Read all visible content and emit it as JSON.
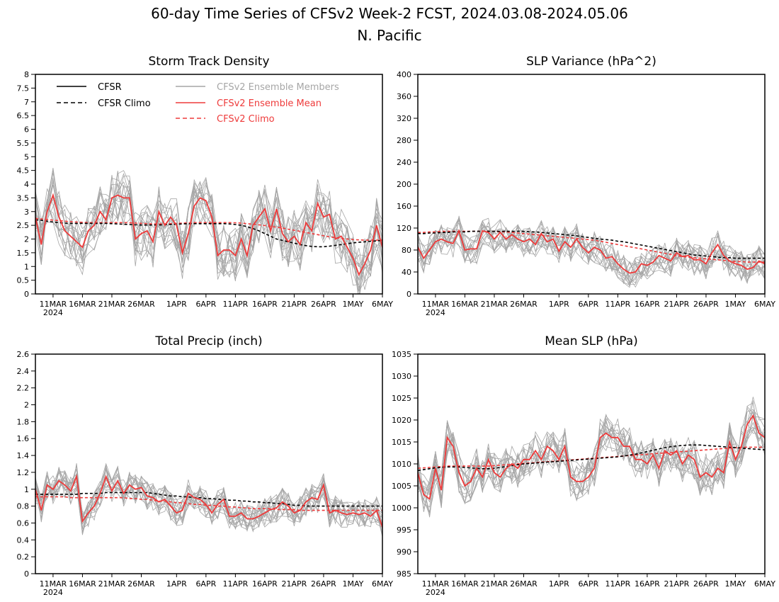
{
  "title": "60-day Time Series of CFSv2 Week-2 FCST, 2024.03.08-2024.05.06",
  "subtitle": "N. Pacific",
  "colors": {
    "cfsr": "#000000",
    "ensemble_members": "#a6a6a6",
    "ensemble_mean": "#ee3b3b",
    "cfsv2_climo": "#ee3b3b"
  },
  "legend": [
    {
      "label": "CFSR",
      "style": "solid",
      "color": "#000000"
    },
    {
      "label": "CFSR Climo",
      "style": "dashed",
      "color": "#000000"
    },
    {
      "label": "CFSv2 Ensemble Members",
      "style": "solid",
      "color": "#a6a6a6"
    },
    {
      "label": "CFSv2 Ensemble Mean",
      "style": "solid",
      "color": "#ee3b3b"
    },
    {
      "label": "CFSv2 Climo",
      "style": "dashed",
      "color": "#ee3b3b"
    }
  ],
  "x_ticks": [
    "11MAR",
    "16MAR",
    "21MAR",
    "26MAR",
    "1APR",
    "6APR",
    "11APR",
    "16APR",
    "21APR",
    "26APR",
    "1MAY",
    "6MAY"
  ],
  "x_year_label": "2024",
  "chart_data": [
    {
      "type": "line",
      "title": "Storm Track Density",
      "ylim": [
        0,
        8
      ],
      "yticks": [
        "0",
        "0.5",
        "1",
        "1.5",
        "2",
        "2.5",
        "3",
        "3.5",
        "4",
        "4.5",
        "5",
        "5.5",
        "6",
        "6.5",
        "7",
        "7.5",
        "8"
      ],
      "x_range_days": [
        0,
        59
      ],
      "x_tick_days": [
        3,
        8,
        13,
        18,
        24,
        29,
        34,
        39,
        44,
        49,
        54,
        59
      ],
      "series": [
        {
          "name": "CFSv2 Ensemble Mean",
          "values": [
            2.8,
            1.8,
            3.0,
            3.6,
            2.8,
            2.3,
            2.1,
            1.9,
            1.7,
            2.3,
            2.5,
            3.0,
            2.7,
            3.5,
            3.6,
            3.5,
            3.5,
            2.0,
            2.2,
            2.3,
            1.9,
            3.0,
            2.5,
            2.8,
            2.5,
            1.5,
            2.2,
            3.2,
            3.5,
            3.4,
            2.8,
            1.4,
            1.6,
            1.6,
            1.4,
            2.0,
            1.4,
            2.5,
            2.8,
            3.1,
            2.3,
            3.1,
            2.2,
            1.9,
            2.1,
            1.8,
            2.6,
            2.3,
            3.3,
            2.8,
            2.9,
            2.0,
            2.1,
            1.7,
            1.3,
            0.7,
            1.1,
            1.6,
            2.5,
            1.7
          ]
        },
        {
          "name": "CFSR Climo",
          "values": [
            2.7,
            2.68,
            2.65,
            2.62,
            2.6,
            2.58,
            2.57,
            2.57,
            2.57,
            2.57,
            2.57,
            2.57,
            2.57,
            2.56,
            2.55,
            2.54,
            2.53,
            2.52,
            2.51,
            2.51,
            2.51,
            2.51,
            2.52,
            2.53,
            2.54,
            2.55,
            2.56,
            2.56,
            2.56,
            2.56,
            2.56,
            2.56,
            2.56,
            2.55,
            2.53,
            2.5,
            2.45,
            2.38,
            2.3,
            2.2,
            2.1,
            2.0,
            1.95,
            1.9,
            1.85,
            1.8,
            1.76,
            1.73,
            1.72,
            1.72,
            1.74,
            1.77,
            1.8,
            1.83,
            1.86,
            1.88,
            1.9,
            1.92,
            1.93,
            1.95
          ]
        },
        {
          "name": "CFSv2 Climo",
          "values": [
            2.75,
            2.73,
            2.71,
            2.69,
            2.67,
            2.65,
            2.63,
            2.62,
            2.61,
            2.6,
            2.6,
            2.6,
            2.6,
            2.6,
            2.6,
            2.6,
            2.59,
            2.58,
            2.57,
            2.56,
            2.55,
            2.55,
            2.55,
            2.56,
            2.57,
            2.58,
            2.59,
            2.6,
            2.6,
            2.6,
            2.6,
            2.6,
            2.6,
            2.6,
            2.59,
            2.58,
            2.56,
            2.54,
            2.52,
            2.49,
            2.46,
            2.43,
            2.4,
            2.36,
            2.32,
            2.28,
            2.24,
            2.2,
            2.16,
            2.12,
            2.08,
            2.05,
            2.02,
            2.0,
            1.98,
            1.97,
            1.96,
            1.96,
            1.96,
            1.96
          ]
        }
      ],
      "member_spread": 1.0
    },
    {
      "type": "line",
      "title": "SLP Variance (hPa^2)",
      "ylim": [
        0,
        400
      ],
      "yticks": [
        "0",
        "40",
        "80",
        "120",
        "160",
        "200",
        "240",
        "280",
        "320",
        "360",
        "400"
      ],
      "x_range_days": [
        0,
        59
      ],
      "x_tick_days": [
        3,
        8,
        13,
        18,
        24,
        29,
        34,
        39,
        44,
        49,
        54,
        59
      ],
      "series": [
        {
          "name": "CFSv2 Ensemble Mean",
          "values": [
            85,
            65,
            80,
            95,
            100,
            95,
            92,
            115,
            80,
            82,
            82,
            115,
            112,
            100,
            112,
            100,
            108,
            100,
            95,
            100,
            90,
            110,
            95,
            100,
            78,
            95,
            85,
            100,
            85,
            75,
            85,
            80,
            65,
            68,
            55,
            45,
            38,
            40,
            55,
            52,
            58,
            70,
            65,
            60,
            75,
            68,
            70,
            62,
            62,
            55,
            75,
            90,
            70,
            60,
            55,
            52,
            45,
            48,
            60,
            55
          ]
        },
        {
          "name": "CFSR Climo",
          "values": [
            110,
            110,
            111,
            111,
            112,
            112,
            113,
            113,
            113,
            114,
            114,
            114,
            114,
            114,
            114,
            114,
            114,
            114,
            114,
            113,
            113,
            112,
            111,
            110,
            109,
            108,
            107,
            106,
            104,
            103,
            101,
            100,
            99,
            98,
            96,
            95,
            93,
            91,
            89,
            87,
            85,
            83,
            81,
            79,
            77,
            75,
            73,
            71,
            70,
            69,
            68,
            67,
            66,
            66,
            65,
            65,
            65,
            65,
            65,
            65
          ]
        },
        {
          "name": "CFSv2 Climo",
          "values": [
            112,
            112,
            113,
            113,
            114,
            114,
            114,
            114,
            114,
            114,
            114,
            114,
            114,
            114,
            113,
            113,
            112,
            111,
            110,
            109,
            108,
            107,
            106,
            105,
            104,
            103,
            102,
            101,
            100,
            99,
            98,
            96,
            94,
            92,
            90,
            88,
            86,
            84,
            82,
            80,
            78,
            76,
            74,
            72,
            70,
            68,
            67,
            66,
            65,
            64,
            63,
            62,
            61,
            60,
            59,
            59,
            58,
            58,
            58,
            58
          ]
        }
      ],
      "member_spread": 28
    },
    {
      "type": "line",
      "title": "Total Precip (inch)",
      "ylim": [
        0,
        2.6
      ],
      "yticks": [
        "0",
        "0.2",
        "0.4",
        "0.6",
        "0.8",
        "1",
        "1.2",
        "1.4",
        "1.6",
        "1.8",
        "2",
        "2.2",
        "2.4",
        "2.6"
      ],
      "x_range_days": [
        0,
        59
      ],
      "x_tick_days": [
        3,
        8,
        13,
        18,
        24,
        29,
        34,
        39,
        44,
        49,
        54,
        59
      ],
      "series": [
        {
          "name": "CFSv2 Ensemble Mean",
          "values": [
            1.0,
            0.75,
            1.05,
            1.0,
            1.1,
            1.05,
            0.98,
            1.15,
            0.62,
            0.72,
            0.8,
            0.95,
            1.15,
            0.98,
            1.1,
            0.95,
            1.05,
            1.0,
            1.02,
            0.92,
            0.9,
            0.85,
            0.88,
            0.8,
            0.72,
            0.75,
            0.95,
            0.9,
            0.88,
            0.82,
            0.72,
            0.82,
            0.88,
            0.68,
            0.68,
            0.72,
            0.65,
            0.65,
            0.68,
            0.72,
            0.76,
            0.78,
            0.85,
            0.8,
            0.72,
            0.75,
            0.85,
            0.9,
            0.88,
            1.05,
            0.72,
            0.75,
            0.72,
            0.7,
            0.72,
            0.7,
            0.72,
            0.68,
            0.75,
            0.55
          ]
        },
        {
          "name": "CFSR Climo",
          "values": [
            0.94,
            0.94,
            0.94,
            0.94,
            0.94,
            0.94,
            0.94,
            0.94,
            0.95,
            0.95,
            0.95,
            0.95,
            0.96,
            0.96,
            0.96,
            0.96,
            0.96,
            0.96,
            0.96,
            0.96,
            0.95,
            0.94,
            0.93,
            0.92,
            0.92,
            0.91,
            0.91,
            0.9,
            0.9,
            0.89,
            0.89,
            0.88,
            0.88,
            0.87,
            0.87,
            0.86,
            0.86,
            0.85,
            0.85,
            0.84,
            0.84,
            0.83,
            0.83,
            0.82,
            0.81,
            0.81,
            0.8,
            0.8,
            0.8,
            0.8,
            0.8,
            0.8,
            0.8,
            0.8,
            0.8,
            0.8,
            0.8,
            0.8,
            0.8,
            0.8
          ]
        },
        {
          "name": "CFSv2 Climo",
          "values": [
            0.91,
            0.91,
            0.91,
            0.91,
            0.91,
            0.91,
            0.9,
            0.9,
            0.9,
            0.9,
            0.9,
            0.9,
            0.9,
            0.9,
            0.9,
            0.9,
            0.89,
            0.89,
            0.88,
            0.88,
            0.87,
            0.86,
            0.86,
            0.85,
            0.84,
            0.84,
            0.83,
            0.82,
            0.82,
            0.81,
            0.81,
            0.8,
            0.8,
            0.79,
            0.79,
            0.78,
            0.78,
            0.77,
            0.77,
            0.77,
            0.77,
            0.76,
            0.76,
            0.76,
            0.76,
            0.75,
            0.75,
            0.75,
            0.75,
            0.75,
            0.75,
            0.75,
            0.75,
            0.75,
            0.75,
            0.75,
            0.75,
            0.75,
            0.75,
            0.75
          ]
        }
      ],
      "member_spread": 0.17
    },
    {
      "type": "line",
      "title": "Mean SLP (hPa)",
      "ylim": [
        985,
        1035
      ],
      "yticks": [
        "985",
        "990",
        "995",
        "1000",
        "1005",
        "1010",
        "1015",
        "1020",
        "1025",
        "1030",
        "1035"
      ],
      "x_range_days": [
        0,
        59
      ],
      "x_tick_days": [
        3,
        8,
        13,
        18,
        24,
        29,
        34,
        39,
        44,
        49,
        54,
        59
      ],
      "series": [
        {
          "name": "CFSv2 Ensemble Mean",
          "values": [
            1008,
            1003,
            1002,
            1009,
            1004,
            1016,
            1014,
            1008,
            1005,
            1006,
            1009,
            1007,
            1011,
            1008,
            1007,
            1009,
            1010,
            1009,
            1011,
            1011,
            1013,
            1011,
            1014,
            1013,
            1011,
            1014,
            1007,
            1006,
            1006,
            1007,
            1009,
            1016,
            1017,
            1016,
            1016,
            1014,
            1014,
            1011,
            1011,
            1010,
            1012,
            1009,
            1013,
            1012,
            1013,
            1010,
            1012,
            1011,
            1007,
            1008,
            1007,
            1009,
            1008,
            1015,
            1011,
            1014,
            1019,
            1021,
            1017,
            1016
          ]
        },
        {
          "name": "CFSR Climo",
          "values": [
            1008.5,
            1008.7,
            1008.9,
            1009.1,
            1009.2,
            1009.3,
            1009.3,
            1009.3,
            1009.2,
            1009.1,
            1009.0,
            1008.9,
            1008.9,
            1009.0,
            1009.2,
            1009.4,
            1009.6,
            1009.8,
            1010.0,
            1010.1,
            1010.2,
            1010.3,
            1010.4,
            1010.5,
            1010.6,
            1010.7,
            1010.8,
            1010.9,
            1011.0,
            1011.1,
            1011.2,
            1011.3,
            1011.4,
            1011.5,
            1011.6,
            1011.8,
            1012.0,
            1012.2,
            1012.5,
            1012.8,
            1013.1,
            1013.4,
            1013.7,
            1013.9,
            1014.1,
            1014.2,
            1014.3,
            1014.3,
            1014.3,
            1014.2,
            1014.1,
            1014.0,
            1013.9,
            1013.8,
            1013.7,
            1013.6,
            1013.5,
            1013.4,
            1013.3,
            1013.2
          ]
        },
        {
          "name": "CFSv2 Climo",
          "values": [
            1009.0,
            1009.1,
            1009.2,
            1009.3,
            1009.4,
            1009.5,
            1009.5,
            1009.5,
            1009.5,
            1009.5,
            1009.5,
            1009.5,
            1009.5,
            1009.6,
            1009.7,
            1009.8,
            1009.9,
            1010.0,
            1010.1,
            1010.2,
            1010.3,
            1010.4,
            1010.5,
            1010.6,
            1010.7,
            1010.8,
            1010.9,
            1011.0,
            1011.1,
            1011.2,
            1011.3,
            1011.4,
            1011.5,
            1011.6,
            1011.7,
            1011.8,
            1011.9,
            1012.0,
            1012.1,
            1012.2,
            1012.3,
            1012.4,
            1012.5,
            1012.6,
            1012.7,
            1012.8,
            1012.9,
            1013.0,
            1013.1,
            1013.2,
            1013.3,
            1013.4,
            1013.5,
            1013.6,
            1013.7,
            1013.8,
            1013.8,
            1013.8,
            1013.8,
            1013.8
          ]
        }
      ],
      "member_spread": 4.5
    }
  ]
}
